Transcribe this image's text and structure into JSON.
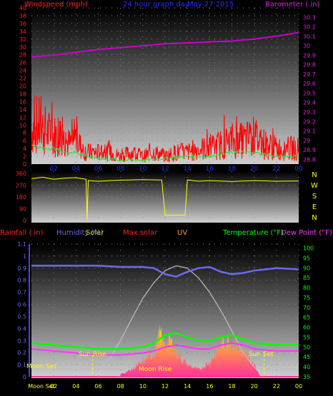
{
  "header": {
    "windspeed": "Windspeed (mph)",
    "period": "24 hour graph day",
    "date": "May 27 2015",
    "barometer": "Barometer (.in)"
  },
  "legend2": {
    "rainfall": "Rainfall (.in)",
    "humidity": "Humidity (%)",
    "solar": "Solar",
    "maxsolar": "Max solar",
    "uv": "UV",
    "temperature": "Temperature (°F)",
    "dewpoint": "Dew Point (°F)"
  },
  "compass": [
    "N",
    "W",
    "S",
    "E",
    "N"
  ],
  "annotations": {
    "moon_set": "Moon Set",
    "moon_rise": "Moon Rise",
    "sun_rise": "Sun Rise",
    "sun_set": "Sun Set",
    "bottom_moon": "Moon Set"
  },
  "colors": {
    "wind": "#ff0000",
    "wind_avg": "#33dd33",
    "barometer": "#cc00cc",
    "direction": "#ffff00",
    "humidity": "#6b6bf0",
    "solar": "#ffff00",
    "maxsolar": "#c0c0c0",
    "uv": "#ffa500",
    "temperature": "#00ff00",
    "dewpoint": "#ff33ff",
    "rain": "#4444ff"
  },
  "chart_data": [
    {
      "type": "line",
      "title": "24 hour graph day",
      "x_tick_labels": [
        "02",
        "04",
        "06",
        "08",
        "10",
        "12",
        "14",
        "16",
        "18",
        "20",
        "22",
        "00"
      ],
      "y_left_label": "Windspeed (mph)",
      "y_left_ticks": [
        0,
        2,
        4,
        6,
        8,
        10,
        12,
        14,
        16,
        18,
        20,
        22,
        24,
        26,
        28,
        30,
        32,
        34,
        36,
        38,
        40
      ],
      "ylim_left": [
        0,
        40
      ],
      "y_right_label": "Barometer (.in)",
      "y_right_ticks": [
        "28.8",
        "28.9",
        "29",
        "29.1",
        "29.2",
        "29.3",
        "29.4",
        "29.5",
        "29.6",
        "29.7",
        "29.8",
        "29.9",
        "30",
        "30.1",
        "30.2",
        "30.3"
      ],
      "ylim_right": [
        28.75,
        30.4
      ],
      "series": [
        {
          "name": "Windspeed (mph)",
          "hours": [
            0,
            0.5,
            1,
            1.5,
            2,
            2.5,
            3,
            3.5,
            4,
            4.5,
            5,
            6,
            7,
            8,
            9,
            10,
            11,
            12,
            13,
            14,
            15,
            16,
            17,
            18,
            19,
            20,
            21,
            22,
            23,
            24
          ],
          "values": [
            9,
            10,
            9,
            8,
            7,
            8,
            6,
            5,
            7,
            4,
            3,
            3,
            3,
            2,
            3,
            2,
            3,
            2,
            3,
            3,
            4,
            4,
            5,
            6,
            6,
            7,
            5,
            4,
            4,
            4
          ]
        },
        {
          "name": "Wind Avg",
          "hours": [
            0,
            1,
            2,
            3,
            4,
            5,
            6,
            8,
            10,
            12,
            14,
            16,
            18,
            20,
            22,
            24
          ],
          "values": [
            5,
            4,
            4,
            3,
            3,
            2,
            1.5,
            1,
            1,
            1.5,
            2,
            2,
            3,
            3,
            2,
            2
          ]
        },
        {
          "name": "Barometer (.in)",
          "hours": [
            0,
            2,
            4,
            6,
            8,
            10,
            12,
            14,
            16,
            18,
            20,
            22,
            24
          ],
          "values": [
            29.88,
            29.9,
            29.93,
            29.96,
            29.98,
            30.0,
            30.02,
            30.03,
            30.04,
            30.05,
            30.07,
            30.1,
            30.14
          ]
        }
      ]
    },
    {
      "type": "line",
      "ylim": [
        0,
        360
      ],
      "y_ticks": [
        0,
        90,
        180,
        270,
        360
      ],
      "series": [
        {
          "name": "Wind direction",
          "hours": [
            0,
            1,
            2,
            3,
            4,
            4.9,
            5,
            5.1,
            6,
            8,
            10,
            11.7,
            12,
            13.8,
            14,
            15,
            16,
            18,
            20,
            22,
            24
          ],
          "values": [
            320,
            325,
            318,
            322,
            330,
            315,
            5,
            305,
            300,
            308,
            312,
            310,
            40,
            42,
            310,
            300,
            305,
            298,
            305,
            300,
            302
          ]
        }
      ]
    },
    {
      "type": "area",
      "x_tick_labels": [
        "Moon Set",
        "02",
        "04",
        "06",
        "08",
        "10",
        "12",
        "14",
        "16",
        "18",
        "20",
        "22",
        "00"
      ],
      "y_left_label": "Rainfall (.in)",
      "y_left_ticks": [
        "0",
        "0.1",
        "0.2",
        "0.3",
        "0.4",
        "0.5",
        "0.6",
        "0.7",
        "0.8",
        "0.9",
        "1",
        "1.1"
      ],
      "ylim_left": [
        0,
        1.1
      ],
      "y_right_label": "Temperature (°F)",
      "y_right_ticks": [
        35,
        40,
        45,
        50,
        55,
        60,
        65,
        70,
        75,
        80,
        85,
        90,
        95,
        100
      ],
      "ylim_right": [
        35,
        102
      ],
      "series": [
        {
          "name": "Humidity (%)",
          "hours": [
            0,
            2,
            4,
            6,
            8,
            10,
            11,
            12,
            13,
            14,
            15,
            16,
            17,
            18,
            19,
            20,
            22,
            24
          ],
          "values": [
            92,
            92,
            92,
            92,
            91,
            91,
            90,
            85,
            83,
            87,
            90,
            91,
            87,
            85,
            86,
            88,
            90,
            89
          ]
        },
        {
          "name": "Max solar",
          "hours": [
            5.5,
            7,
            8,
            9,
            10,
            11,
            12,
            13,
            14,
            15,
            16,
            17,
            18,
            19,
            20,
            20.9
          ],
          "values": [
            0,
            15,
            30,
            48,
            65,
            78,
            88,
            92,
            90,
            82,
            70,
            55,
            38,
            20,
            8,
            0
          ]
        },
        {
          "name": "Solar",
          "hours": [
            8,
            9,
            10,
            11,
            11.5,
            12,
            12.5,
            13,
            14,
            15,
            16,
            17,
            17.5,
            18,
            19,
            20,
            20.5
          ],
          "values": [
            2,
            6,
            12,
            20,
            35,
            25,
            30,
            20,
            10,
            6,
            12,
            25,
            30,
            28,
            20,
            10,
            2
          ]
        },
        {
          "name": "Temperature (°F)",
          "hours": [
            0,
            2,
            4,
            6,
            8,
            10,
            11,
            12,
            13,
            14,
            15,
            16,
            17,
            18,
            19,
            20,
            22,
            24
          ],
          "values": [
            52,
            51,
            50,
            49,
            49,
            50,
            52,
            56,
            57,
            55,
            53,
            53,
            55,
            56,
            54,
            52,
            51,
            51
          ]
        },
        {
          "name": "Dew Point (°F)",
          "hours": [
            0,
            2,
            4,
            6,
            8,
            10,
            11,
            12,
            13,
            14,
            15,
            16,
            17,
            18,
            19,
            20,
            22,
            24
          ],
          "values": [
            49,
            48,
            47,
            46,
            46,
            47,
            48,
            50,
            51,
            50,
            49,
            49,
            51,
            52,
            51,
            49,
            48,
            48
          ]
        }
      ]
    }
  ]
}
